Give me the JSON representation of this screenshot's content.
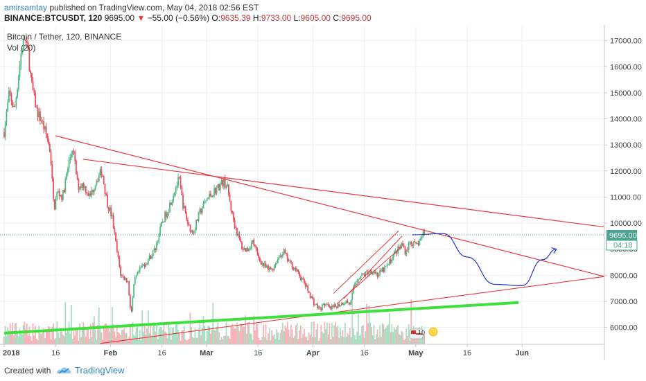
{
  "header": {
    "author": "amirsamtay",
    "published_text": "published on TradingView.com, May 04, 2018 02:56 EST",
    "symbol": "BINANCE:BTCUSDT, 120",
    "last": "9695.00",
    "change": "−55.00 (−0.56%)",
    "open_label": "O:",
    "open": "9635.39",
    "high_label": "H:",
    "high": "9733.00",
    "low_label": "L:",
    "low": "9605.00",
    "close_label": "C:",
    "close": "9695.00"
  },
  "legend": {
    "title": "Bitcoin / Tether, 120, BINANCE",
    "volume": "Vol (20)"
  },
  "price_box": {
    "value": "9695.00",
    "countdown": "04:18"
  },
  "footer": {
    "created_with": "Created with",
    "brand": "TradingView"
  },
  "chart_data": {
    "type": "candlestick",
    "symbol": "BTCUSDT",
    "interval": "120",
    "y_ticks": [
      6000,
      7000,
      8000,
      9000,
      10000,
      11000,
      12000,
      13000,
      14000,
      15000,
      16000,
      17000
    ],
    "y_tick_labels": [
      "6000.00",
      "7000.00",
      "8000.00",
      "9000.00",
      "10000.00",
      "11000.00",
      "12000.00",
      "13000.00",
      "14000.00",
      "15000.00",
      "16000.00",
      "17000.00"
    ],
    "ylim": [
      5350,
      17550
    ],
    "x_tick_labels": [
      "2018",
      "16",
      "Feb",
      "16",
      "Mar",
      "16",
      "Apr",
      "16",
      "May",
      "16",
      "Jun"
    ],
    "x_tick_days": [
      0,
      15,
      31,
      46,
      59,
      74,
      90,
      105,
      120,
      135,
      151
    ],
    "xlim_days": [
      0,
      175
    ],
    "price_path": [
      [
        0,
        13500
      ],
      [
        1.5,
        15000
      ],
      [
        3,
        14300
      ],
      [
        5,
        16600
      ],
      [
        6,
        17100
      ],
      [
        7,
        16500
      ],
      [
        8,
        15300
      ],
      [
        9.5,
        14300
      ],
      [
        11,
        13900
      ],
      [
        12.5,
        13300
      ],
      [
        13.5,
        12700
      ],
      [
        14.5,
        10500
      ],
      [
        15.5,
        11200
      ],
      [
        17,
        11000
      ],
      [
        19,
        12400
      ],
      [
        20,
        12900
      ],
      [
        21.5,
        11400
      ],
      [
        23,
        11500
      ],
      [
        25,
        11000
      ],
      [
        27,
        11700
      ],
      [
        28.5,
        12000
      ],
      [
        30,
        10800
      ],
      [
        31.5,
        10200
      ],
      [
        33,
        8800
      ],
      [
        34,
        8000
      ],
      [
        36,
        7800
      ],
      [
        37,
        6500
      ],
      [
        38,
        7800
      ],
      [
        40,
        8300
      ],
      [
        42,
        8600
      ],
      [
        44,
        9000
      ],
      [
        46,
        10000
      ],
      [
        48,
        10600
      ],
      [
        49.5,
        11200
      ],
      [
        51,
        11700
      ],
      [
        52,
        10800
      ],
      [
        53.5,
        10000
      ],
      [
        55,
        9600
      ],
      [
        57,
        10400
      ],
      [
        59,
        10900
      ],
      [
        61,
        11200
      ],
      [
        62.5,
        11400
      ],
      [
        64,
        11600
      ],
      [
        65,
        11400
      ],
      [
        66.5,
        10300
      ],
      [
        68,
        9600
      ],
      [
        69.5,
        9000
      ],
      [
        71,
        9000
      ],
      [
        72.5,
        9300
      ],
      [
        74,
        8700
      ],
      [
        75.5,
        8400
      ],
      [
        77,
        8200
      ],
      [
        78.5,
        8300
      ],
      [
        80,
        8700
      ],
      [
        81.5,
        8900
      ],
      [
        83,
        8500
      ],
      [
        84.5,
        8300
      ],
      [
        86,
        8000
      ],
      [
        87.5,
        7700
      ],
      [
        89,
        7300
      ],
      [
        90.5,
        6900
      ],
      [
        92,
        6700
      ],
      [
        93.5,
        6900
      ],
      [
        95,
        6700
      ],
      [
        96.5,
        6800
      ],
      [
        98,
        6900
      ],
      [
        99.5,
        7000
      ],
      [
        101,
        6900
      ],
      [
        102,
        7600
      ],
      [
        103,
        7900
      ],
      [
        104.5,
        8000
      ],
      [
        106,
        8100
      ],
      [
        107.5,
        8200
      ],
      [
        109,
        8000
      ],
      [
        110.5,
        8200
      ],
      [
        112,
        8400
      ],
      [
        113.5,
        8800
      ],
      [
        115,
        9000
      ],
      [
        116,
        9200
      ],
      [
        117,
        8900
      ],
      [
        118.5,
        9300
      ],
      [
        120,
        9100
      ],
      [
        121.5,
        9400
      ],
      [
        122.5,
        9695
      ]
    ],
    "current_price": 9695,
    "drawings": {
      "red_lines": [
        [
          [
            15,
            13350
          ],
          [
            175,
            7950
          ]
        ],
        [
          [
            23,
            12450
          ],
          [
            175,
            9850
          ]
        ],
        [
          [
            28,
            5380
          ],
          [
            175,
            7950
          ]
        ]
      ],
      "green_line": [
        [
          0,
          5780
        ],
        [
          150,
          6950
        ]
      ],
      "red_channel": [
        [
          [
            96,
            7300
          ],
          [
            115,
            9700
          ]
        ],
        [
          [
            97,
            6900
          ],
          [
            116,
            9100
          ]
        ],
        [
          [
            99,
            7100
          ],
          [
            116,
            9500
          ]
        ]
      ],
      "blue_projection": [
        [
          119,
          9550
        ],
        [
          128,
          9600
        ],
        [
          135,
          8700
        ],
        [
          143,
          7650
        ],
        [
          151,
          7600
        ],
        [
          157,
          8600
        ],
        [
          161,
          9000
        ]
      ]
    }
  }
}
